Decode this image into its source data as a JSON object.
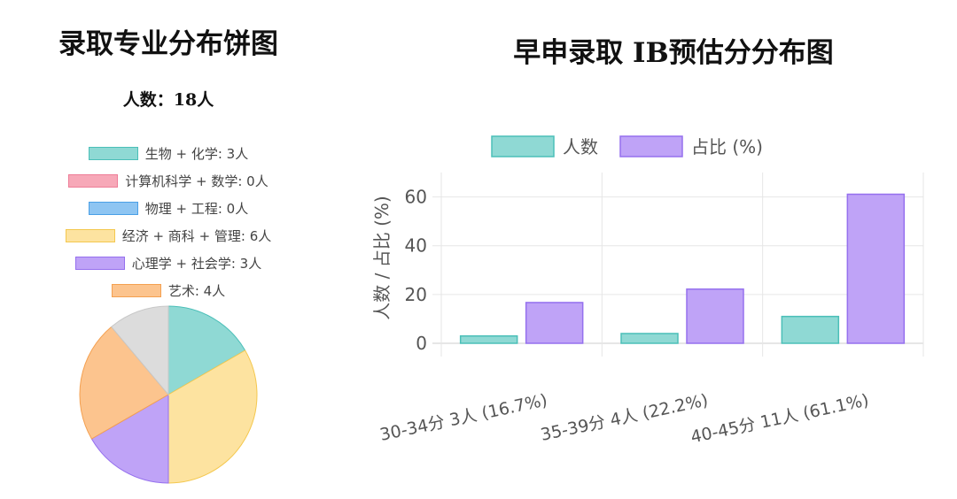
{
  "chart_data": [
    {
      "type": "pie",
      "title": "录取专业分布饼图",
      "subtitle": "人数：18人",
      "legend_position": "top",
      "categories": [
        "生物 + 化学",
        "计算机科学 + 数学",
        "物理 + 工程",
        "经济 + 商科 + 管理",
        "心理学 + 社会学",
        "艺术"
      ],
      "legend_labels": [
        "生物 + 化学: 3人",
        "计算机科学 + 数学: 0人",
        "物理 + 工程: 0人",
        "经济 + 商科 + 管理: 6人",
        "心理学 + 社会学: 3人",
        "艺术: 4人"
      ],
      "values": [
        3,
        0,
        0,
        6,
        3,
        4
      ],
      "colors": [
        "#8fd9d4",
        "#f7a8b8",
        "#8ec5f2",
        "#fde3a0",
        "#bfa3f7",
        "#fcc48e"
      ],
      "border_colors": [
        "#4bbfb8",
        "#ee7d98",
        "#4a9fe6",
        "#f4c84f",
        "#9570ee",
        "#f4a050"
      ],
      "remainder": {
        "value": 2,
        "color": "#dcdcdc",
        "border_color": "#c8c8c8"
      }
    },
    {
      "type": "bar",
      "title": "早申录取 IB预估分分布图",
      "categories": [
        "30-34分 3人 (16.7%)",
        "35-39分 4人 (22.2%)",
        "40-45分 11人 (61.1%)"
      ],
      "series": [
        {
          "name": "人数",
          "values": [
            3,
            4,
            11
          ],
          "color": "#8fd9d4",
          "border_color": "#4bbfb8"
        },
        {
          "name": "占比 (%)",
          "values": [
            16.7,
            22.2,
            61.1
          ],
          "color": "#bfa3f7",
          "border_color": "#9570ee"
        }
      ],
      "xlabel": "",
      "ylabel": "人数 / 占比 (%)",
      "ylim": [
        0,
        70
      ],
      "yticks": [
        0,
        20,
        40,
        60
      ],
      "grid": true,
      "legend_position": "top"
    }
  ]
}
